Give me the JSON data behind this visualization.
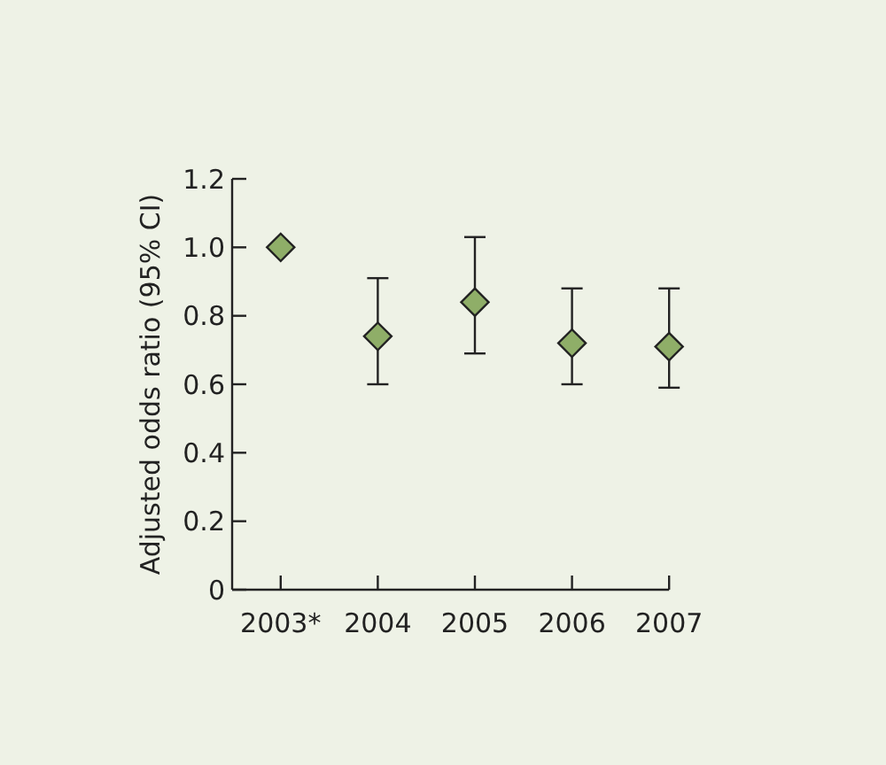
{
  "chart_data": {
    "type": "scatter",
    "ylabel": "Adjusted odds ratio (95% CI)",
    "categories": [
      "2003*",
      "2004",
      "2005",
      "2006",
      "2007"
    ],
    "values": [
      1.0,
      0.74,
      0.84,
      0.72,
      0.71
    ],
    "errors": [
      null,
      [
        0.6,
        0.91
      ],
      [
        0.69,
        1.03
      ],
      [
        0.6,
        0.88
      ],
      [
        0.59,
        0.88
      ]
    ],
    "color": "#8fae68",
    "marker": "diamond",
    "ylim": [
      0,
      1.2
    ],
    "yticks": [
      {
        "value": 0,
        "label": "0"
      },
      {
        "value": 0.2,
        "label": "0.2"
      },
      {
        "value": 0.4,
        "label": "0.4"
      },
      {
        "value": 0.6,
        "label": "0.6"
      },
      {
        "value": 0.8,
        "label": "0.8"
      },
      {
        "value": 1.0,
        "label": "1.0"
      },
      {
        "value": 1.2,
        "label": "1.2"
      }
    ],
    "grid": false
  }
}
